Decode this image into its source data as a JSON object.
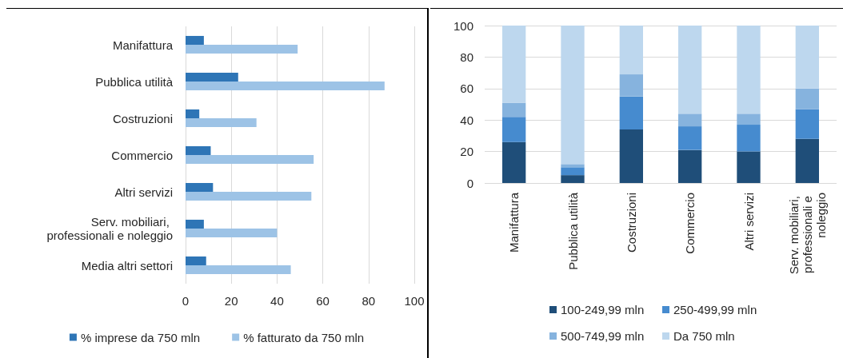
{
  "chart_data": [
    {
      "type": "bar",
      "orientation": "horizontal",
      "categories": [
        "Manifattura",
        "Pubblica utilità",
        "Costruzioni",
        "Commercio",
        "Altri servizi",
        "Serv. mobiliari, professionali e noleggio",
        "Media altri settori"
      ],
      "series": [
        {
          "name": "% imprese da 750 mln",
          "color": "#2e75b6",
          "values": [
            8,
            23,
            6,
            11,
            12,
            8,
            9
          ]
        },
        {
          "name": "% fatturato da 750 mln",
          "color": "#9dc3e6",
          "values": [
            49,
            87,
            31,
            56,
            55,
            40,
            46
          ]
        }
      ],
      "xlim": [
        0,
        100
      ],
      "xticks": [
        0,
        20,
        40,
        60,
        80,
        100
      ],
      "grid": "x",
      "legend": "bottom"
    },
    {
      "type": "bar",
      "stacked": true,
      "categories": [
        "Manifattura",
        "Pubblica utilità",
        "Costruzioni",
        "Commercio",
        "Altri servizi",
        "Serv. mobiliari, professionali e noleggio"
      ],
      "series": [
        {
          "name": "100-249,99 mln",
          "color": "#1f4e79",
          "values": [
            26,
            5,
            34,
            21,
            20,
            28
          ]
        },
        {
          "name": "250-499,99 mln",
          "color": "#468bcf",
          "values": [
            16,
            5,
            21,
            15,
            17,
            19
          ]
        },
        {
          "name": "500-749,99 mln",
          "color": "#86b3de",
          "values": [
            9,
            2,
            14,
            8,
            7,
            13
          ]
        },
        {
          "name": "Da 750 mln",
          "color": "#bdd7ee",
          "values": [
            49,
            88,
            31,
            56,
            56,
            40
          ]
        }
      ],
      "ylim": [
        0,
        100
      ],
      "yticks": [
        0,
        20,
        40,
        60,
        80,
        100
      ],
      "grid": "y",
      "legend": "bottom"
    }
  ]
}
